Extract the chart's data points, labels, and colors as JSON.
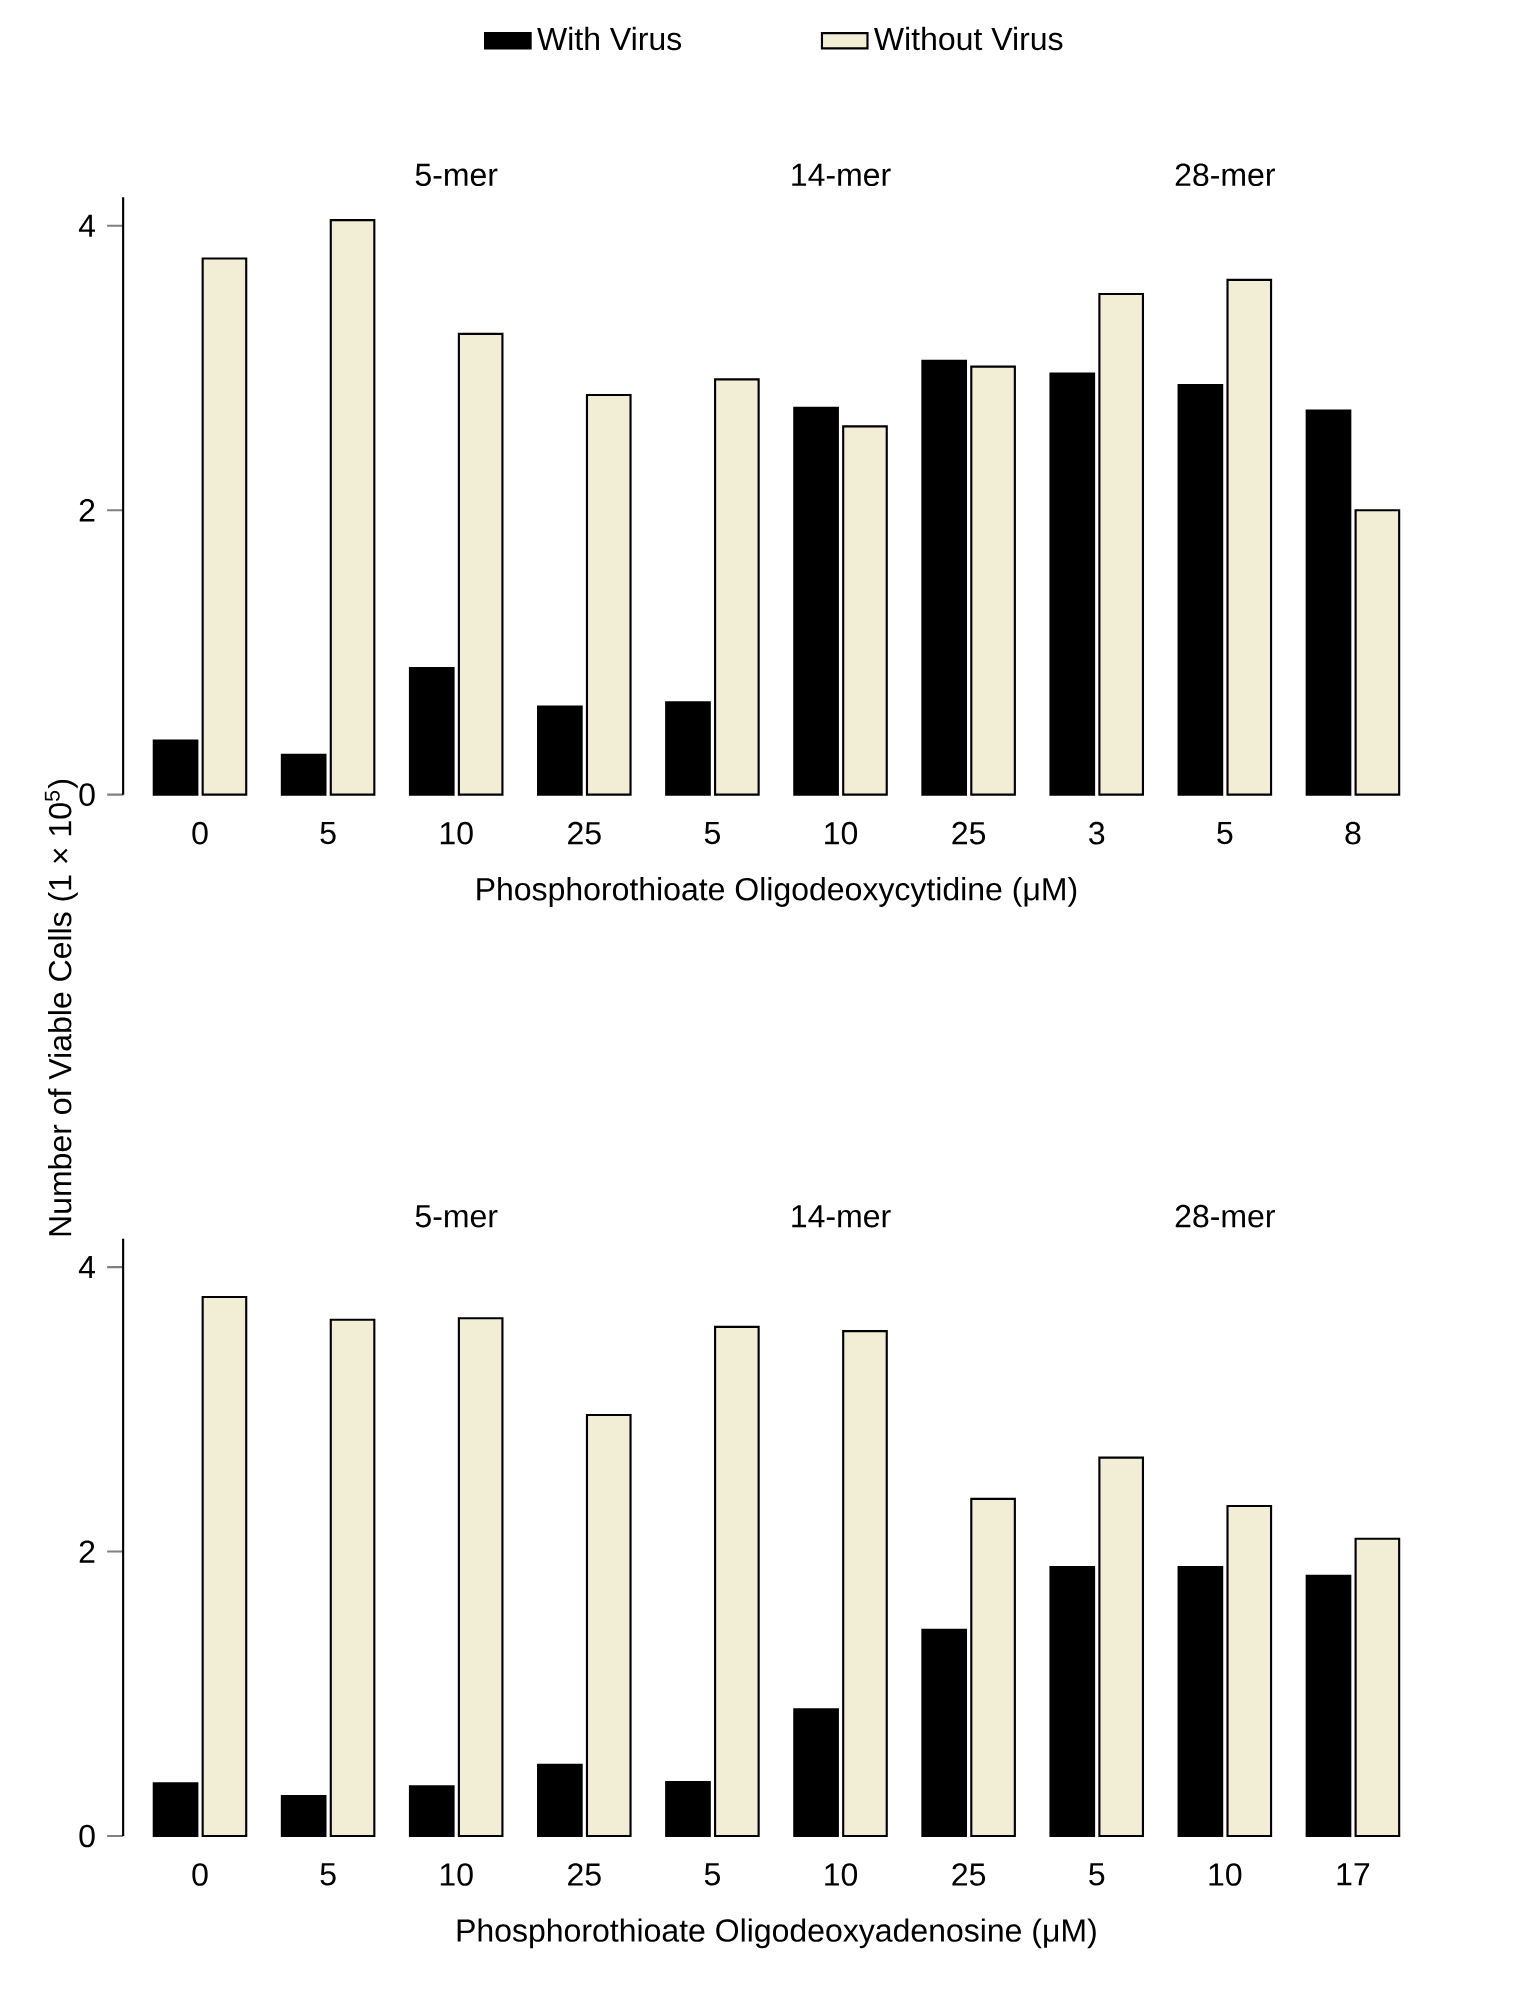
{
  "chart_data": [
    {
      "type": "bar",
      "xlabel": "Phosphorothioate Oligodeoxycytidine (μM)",
      "ylabel": "Number of Viable Cells (1 × 10$^{5}$)",
      "categories": [
        "0",
        "5",
        "10",
        "25",
        "5",
        "10",
        "25",
        "3",
        "5",
        "8"
      ],
      "series": [
        {
          "name": "With Virus",
          "color": "#000000",
          "values": [
            0.38,
            0.28,
            0.89,
            0.62,
            0.65,
            2.72,
            3.05,
            2.96,
            2.88,
            2.7
          ]
        },
        {
          "name": "Without Virus",
          "color": "#f2eed6",
          "values": [
            3.77,
            4.04,
            3.24,
            2.81,
            2.92,
            2.59,
            3.01,
            3.52,
            3.62,
            2.0
          ]
        }
      ],
      "ylim": [
        0,
        4.2
      ],
      "yticks": [
        0,
        2,
        4
      ],
      "legend": "top",
      "annotations": [
        "5-mer",
        "14-mer",
        "28-mer"
      ]
    },
    {
      "type": "bar",
      "xlabel": "Phosphorothioate Oligodeoxyadenosine (μM)",
      "categories": [
        "0",
        "5",
        "10",
        "25",
        "5",
        "10",
        "25",
        "5",
        "10",
        "17"
      ],
      "series": [
        {
          "color": "#000000",
          "values": [
            0.37,
            0.28,
            0.35,
            0.5,
            0.38,
            0.89,
            1.45,
            1.89,
            1.89,
            1.83
          ]
        },
        {
          "color": "#f2eed6",
          "values": [
            3.79,
            3.63,
            3.64,
            2.96,
            3.58,
            3.55,
            2.37,
            2.66,
            2.32,
            2.09
          ]
        }
      ],
      "ylim": [
        0,
        4.2
      ],
      "yticks": [
        0,
        2,
        4
      ],
      "annotations": [
        "5-mer",
        "14-mer",
        "28-mer"
      ]
    }
  ]
}
